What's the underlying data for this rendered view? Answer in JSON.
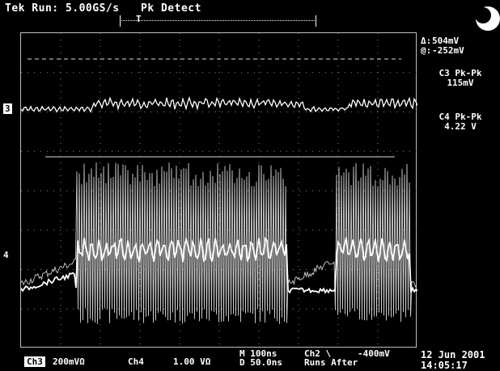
{
  "header": {
    "status": "Tek Run: 5.00GS/s",
    "mode": "Pk Detect",
    "trigger_marker": "T"
  },
  "measurements": {
    "delta_label": "Δ:",
    "delta_value": "504mV",
    "at_label": "@:",
    "at_value": "-252mV",
    "c3_title": "C3 Pk-Pk",
    "c3_value": "115mV",
    "c4_title": "C4 Pk-Pk",
    "c4_value": "4.22 V"
  },
  "channel_markers": {
    "ch3": "3",
    "ch4": "4"
  },
  "bottom": {
    "ch3_chip": "Ch3",
    "ch3_scale": "200mVΩ",
    "ch4_label": "Ch4",
    "ch4_scale": "1.00 VΩ",
    "timebase": "M  100ns",
    "delay": "D 50.0ns",
    "trig_ch": "Ch2 \\",
    "trig_level": "-400mV",
    "runs_after": "Runs After",
    "date": "12 Jun 2001",
    "time": "14:05:17"
  },
  "colors": {
    "background": "#000000",
    "trace": "#ffffff",
    "grid": "#8a8a8a"
  },
  "icons": {
    "logo": "tek-crescent-logo"
  }
}
